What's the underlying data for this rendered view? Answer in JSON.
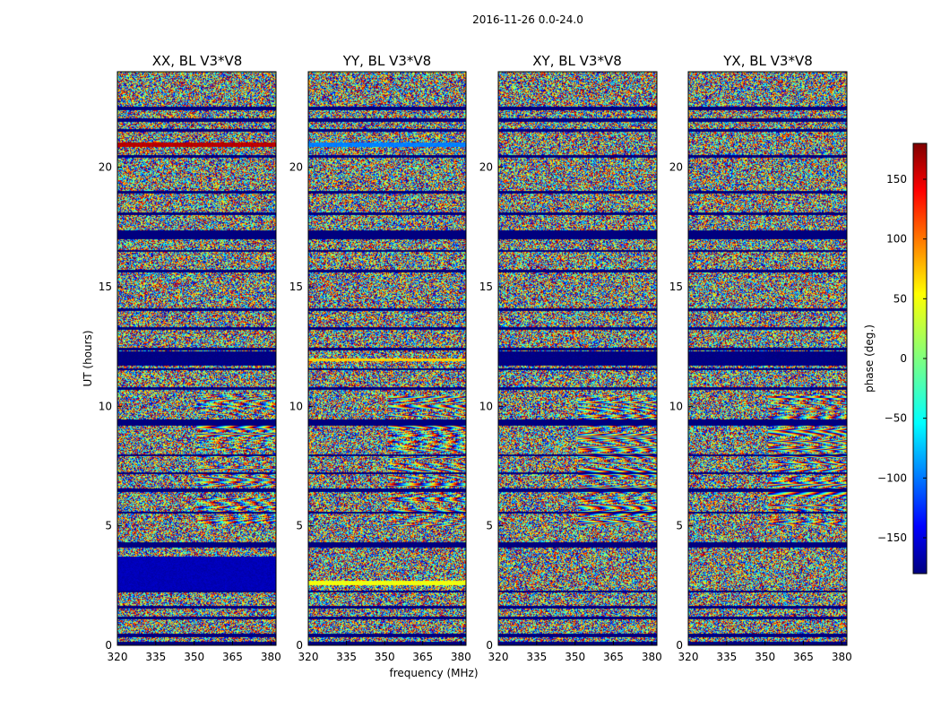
{
  "chart_data": {
    "type": "heatmap",
    "suptitle": "2016-11-26 0.0-24.0",
    "xlabel": "frequency (MHz)",
    "ylabel": "UT (hours)",
    "xlim": [
      320,
      382
    ],
    "ylim": [
      0,
      24
    ],
    "xticks": [
      "320",
      "335",
      "350",
      "365",
      "380"
    ],
    "yticks": [
      "0",
      "5",
      "10",
      "15",
      "20"
    ],
    "colorbar": {
      "label": "phase (deg.)",
      "range": [
        -180,
        180
      ],
      "ticks": [
        "150",
        "100",
        "50",
        "0",
        "−50",
        "−100",
        "−150"
      ],
      "tick_values": [
        150,
        100,
        50,
        0,
        -50,
        -100,
        -150
      ],
      "colormap": "jet",
      "colors": [
        "#00007f",
        "#0000ff",
        "#007fff",
        "#00ffff",
        "#7fff7f",
        "#ffff00",
        "#ff7f00",
        "#ff0000",
        "#7f0000"
      ]
    },
    "panels": [
      {
        "title": "XX, BL V3*V8",
        "id": "xx"
      },
      {
        "title": "YY, BL V3*V8",
        "id": "yy"
      },
      {
        "title": "XY, BL V3*V8",
        "id": "xy"
      },
      {
        "title": "YX, BL V3*V8",
        "id": "yx"
      }
    ],
    "masked_bands_ut_hours": [
      [
        0.0,
        0.15
      ],
      [
        0.35,
        0.5
      ],
      [
        1.1,
        1.2
      ],
      [
        1.55,
        1.65
      ],
      [
        2.2,
        2.3
      ],
      [
        4.1,
        4.3
      ],
      [
        5.5,
        5.6
      ],
      [
        6.4,
        6.55
      ],
      [
        7.15,
        7.25
      ],
      [
        7.9,
        8.0
      ],
      [
        9.2,
        9.45
      ],
      [
        10.7,
        10.8
      ],
      [
        11.5,
        11.6
      ],
      [
        12.35,
        12.45
      ],
      [
        13.2,
        13.3
      ],
      [
        14.0,
        14.1
      ],
      [
        15.6,
        15.7
      ],
      [
        16.45,
        16.55
      ],
      [
        17.0,
        17.35
      ],
      [
        18.0,
        18.1
      ],
      [
        18.9,
        19.0
      ],
      [
        20.4,
        20.5
      ],
      [
        21.5,
        21.6
      ],
      [
        21.9,
        22.05
      ],
      [
        22.4,
        22.55
      ]
    ],
    "uniform_bands": [
      {
        "ut_hours": [
          11.7,
          12.3
        ],
        "phase_deg": -180,
        "panels": [
          "xx",
          "xy",
          "yx"
        ]
      },
      {
        "ut_hours": [
          11.9,
          12.0
        ],
        "phase_deg": 60,
        "panels": [
          "yy"
        ]
      },
      {
        "ut_hours": [
          20.85,
          21.05
        ],
        "phase_deg": 160,
        "panels": [
          "xx"
        ]
      },
      {
        "ut_hours": [
          20.85,
          21.05
        ],
        "phase_deg": -90,
        "panels": [
          "yy"
        ]
      },
      {
        "ut_hours": [
          2.3,
          3.7
        ],
        "phase_deg": -160,
        "panels": [
          "xx"
        ]
      },
      {
        "ut_hours": [
          2.5,
          2.7
        ],
        "phase_deg": 40,
        "panels": [
          "yy"
        ]
      }
    ]
  }
}
